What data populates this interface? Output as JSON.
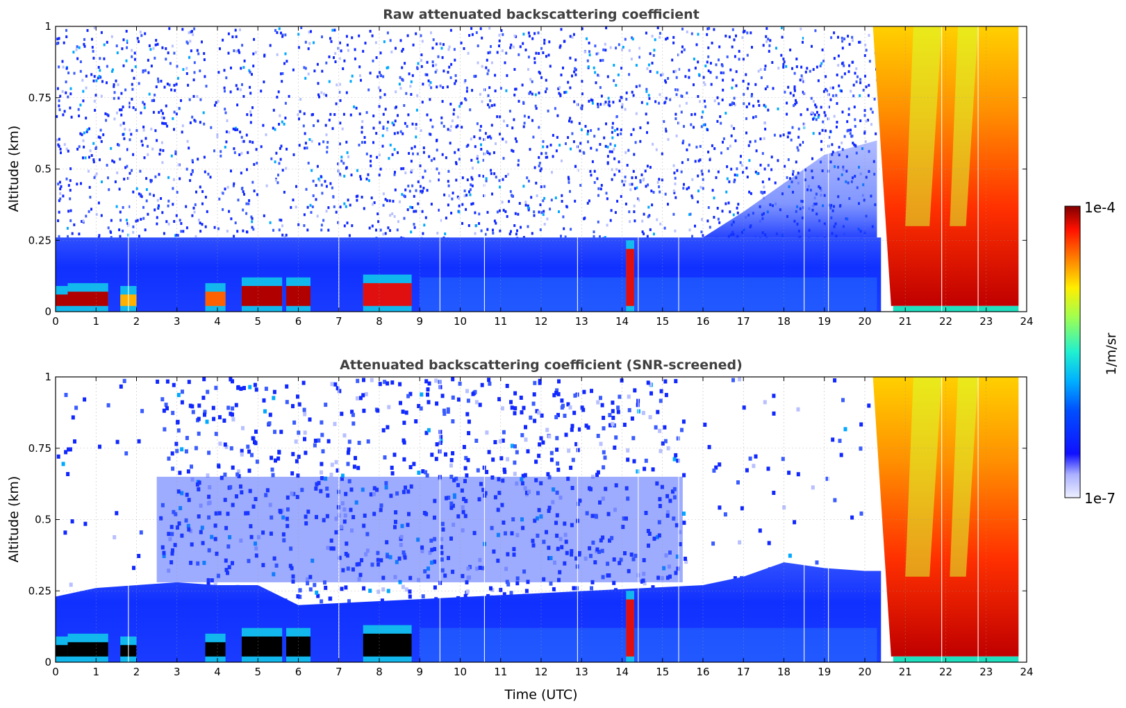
{
  "chart_data": [
    {
      "type": "heatmap",
      "title": "Raw attenuated backscattering coefficient",
      "xlabel": "",
      "ylabel": "Altitude (km)",
      "xlim": [
        0,
        24
      ],
      "ylim": [
        0,
        1
      ],
      "xticks": [
        "0",
        "1",
        "2",
        "3",
        "4",
        "5",
        "6",
        "7",
        "8",
        "9",
        "10",
        "11",
        "12",
        "13",
        "14",
        "15",
        "16",
        "17",
        "18",
        "19",
        "20",
        "21",
        "22",
        "23",
        "24"
      ],
      "yticks": [
        "0",
        "0.25",
        "0.5",
        "0.75",
        "1"
      ],
      "grid": true,
      "features": [
        {
          "t_start": 0.0,
          "t_end": 0.3,
          "z_top": 0.06,
          "level": "1e-4"
        },
        {
          "t_start": 0.3,
          "t_end": 1.3,
          "z_top": 0.07,
          "level": "1e-4"
        },
        {
          "t_start": 1.6,
          "t_end": 2.0,
          "z_top": 0.06,
          "level": "3e-5"
        },
        {
          "t_start": 3.7,
          "t_end": 4.2,
          "z_top": 0.07,
          "level": "5e-5"
        },
        {
          "t_start": 4.6,
          "t_end": 5.6,
          "z_top": 0.09,
          "level": "1e-4"
        },
        {
          "t_start": 5.7,
          "t_end": 6.3,
          "z_top": 0.09,
          "level": "1e-4"
        },
        {
          "t_start": 7.6,
          "t_end": 8.8,
          "z_top": 0.1,
          "level": "8e-5"
        },
        {
          "t_start": 14.1,
          "t_end": 14.3,
          "z_top": 0.22,
          "level": "8e-5"
        },
        {
          "t_start": 20.2,
          "t_end": 23.8,
          "z_top": 1.0,
          "level": "5e-5"
        }
      ]
    },
    {
      "type": "heatmap",
      "title": "Attenuated backscattering coefficient (SNR-screened)",
      "xlabel": "Time (UTC)",
      "ylabel": "Altitude (km)",
      "xlim": [
        0,
        24
      ],
      "ylim": [
        0,
        1
      ],
      "xticks": [
        "0",
        "1",
        "2",
        "3",
        "4",
        "5",
        "6",
        "7",
        "8",
        "9",
        "10",
        "11",
        "12",
        "13",
        "14",
        "15",
        "16",
        "17",
        "18",
        "19",
        "20",
        "21",
        "22",
        "23",
        "24"
      ],
      "yticks": [
        "0",
        "0.25",
        "0.5",
        "0.75",
        "1"
      ],
      "grid": true,
      "boundary_layer_top_km": [
        {
          "t": 0,
          "z": 0.23
        },
        {
          "t": 1,
          "z": 0.26
        },
        {
          "t": 2,
          "z": 0.27
        },
        {
          "t": 3,
          "z": 0.28
        },
        {
          "t": 4,
          "z": 0.27
        },
        {
          "t": 5,
          "z": 0.27
        },
        {
          "t": 6,
          "z": 0.2
        },
        {
          "t": 16,
          "z": 0.27
        },
        {
          "t": 17,
          "z": 0.3
        },
        {
          "t": 18,
          "z": 0.35
        },
        {
          "t": 19,
          "z": 0.33
        },
        {
          "t": 20,
          "z": 0.32
        }
      ]
    }
  ],
  "colorbar": {
    "label": "1/m/sr",
    "max_label": "1e-4",
    "min_label": "1e-7",
    "scale": "log",
    "colormap": "jet"
  }
}
